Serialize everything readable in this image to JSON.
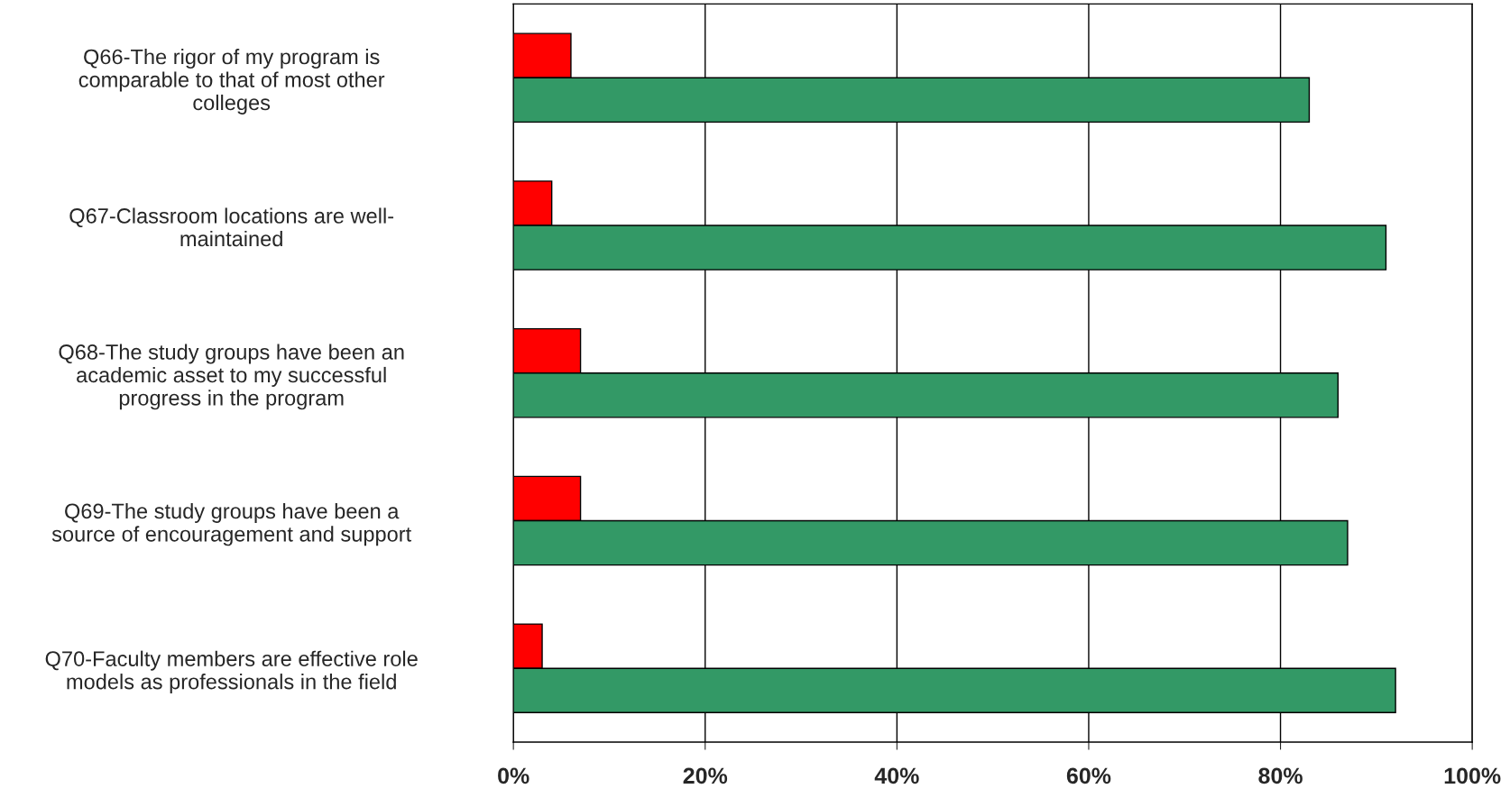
{
  "chart_data": {
    "type": "bar",
    "orientation": "horizontal",
    "categories": [
      "Q66-The rigor of my program is\ncomparable to that of most other\ncolleges",
      "Q67-Classroom locations are well-\nmaintained",
      "Q68-The study groups have been an\nacademic asset to my successful\nprogress in the program",
      "Q69-The study groups have been a\nsource of encouragement and support",
      "Q70-Faculty members are effective role\nmodels as professionals in the field"
    ],
    "series": [
      {
        "color": "#ff0000",
        "values": [
          6,
          4,
          7,
          7,
          3
        ]
      },
      {
        "color": "#339966",
        "values": [
          83,
          91,
          86,
          87,
          92
        ]
      }
    ],
    "xlim": [
      0,
      100
    ],
    "xticks": [
      {
        "value": 0,
        "label": "0%"
      },
      {
        "value": 20,
        "label": "20%"
      },
      {
        "value": 40,
        "label": "40%"
      },
      {
        "value": 60,
        "label": "60%"
      },
      {
        "value": 80,
        "label": "80%"
      },
      {
        "value": 100,
        "label": "100%"
      }
    ],
    "grid": "x",
    "legend": false
  }
}
